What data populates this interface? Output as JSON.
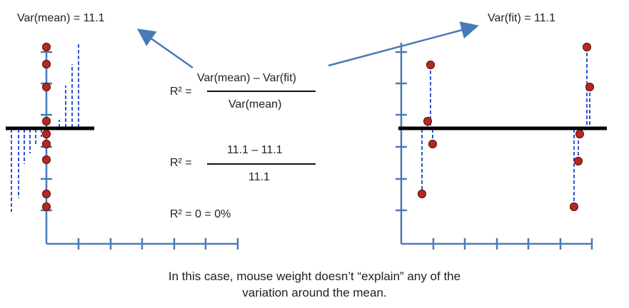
{
  "left_label": "Var(mean) = 11.1",
  "right_label": "Var(fit) = 11.1",
  "formula1": {
    "lhs": "R² =",
    "numerator": "Var(mean) – Var(fit)",
    "denominator": "Var(mean)"
  },
  "formula2": {
    "lhs": "R² =",
    "numerator": "11.1 – 11.1",
    "denominator": "11.1"
  },
  "formula3": "R² = 0 = 0%",
  "caption_line1": "In this case, mouse weight doesn’t “explain” any of the",
  "caption_line2": "variation around the mean.",
  "colors": {
    "axis": "#4a7ab5",
    "point": "#b22a22",
    "point_edge": "#6e1510",
    "residual": "#2f55d4",
    "mean_line": "#000000",
    "arrow": "#4a7ab5"
  }
}
